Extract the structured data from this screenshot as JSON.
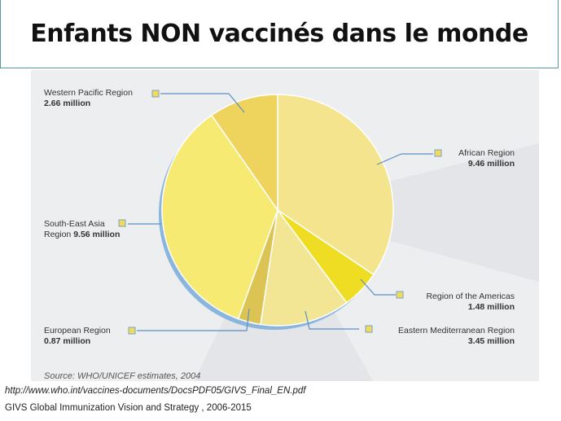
{
  "title": "Enfants NON vaccinés dans le monde",
  "source": "Source: WHO/UNICEF estimates, 2004",
  "url": "http://www.who.int/vaccines-documents/DocsPDF05/GIVS_Final_EN.pdf",
  "footer": "GIVS  Global Immunization Vision and Strategy , 2006-2015",
  "colors": {
    "african": "#f4e48e",
    "americas": "#eedd22",
    "eastern_med": "#f2e694",
    "european": "#dcc454",
    "south_east_asia": "#f6ea72",
    "western_pacific": "#eed35c",
    "rim": "#8ab6de",
    "leader": "#5b8fc6"
  },
  "labels": {
    "western_pacific": {
      "name": "Western Pacific Region",
      "value": "2.66 million"
    },
    "african": {
      "name": "African Region",
      "value": "9.46 million"
    },
    "south_east_asia_1": "South-East Asia",
    "south_east_asia_2": "Region",
    "south_east_asia_value": "9.56 million",
    "americas": {
      "name": "Region of the Americas",
      "value": "1.48 million"
    },
    "european": {
      "name": "European Region",
      "value": "0.87 million"
    },
    "eastern_med": {
      "name": "Eastern Mediterranean Region",
      "value": "3.45 million"
    }
  },
  "chart_data": {
    "type": "pie",
    "title": "",
    "unit": "million",
    "slices": [
      {
        "label": "African Region",
        "value": 9.46
      },
      {
        "label": "Region of the Americas",
        "value": 1.48
      },
      {
        "label": "Eastern Mediterranean Region",
        "value": 3.45
      },
      {
        "label": "European Region",
        "value": 0.87
      },
      {
        "label": "South-East Asia Region",
        "value": 9.56
      },
      {
        "label": "Western Pacific Region",
        "value": 2.66
      }
    ]
  }
}
